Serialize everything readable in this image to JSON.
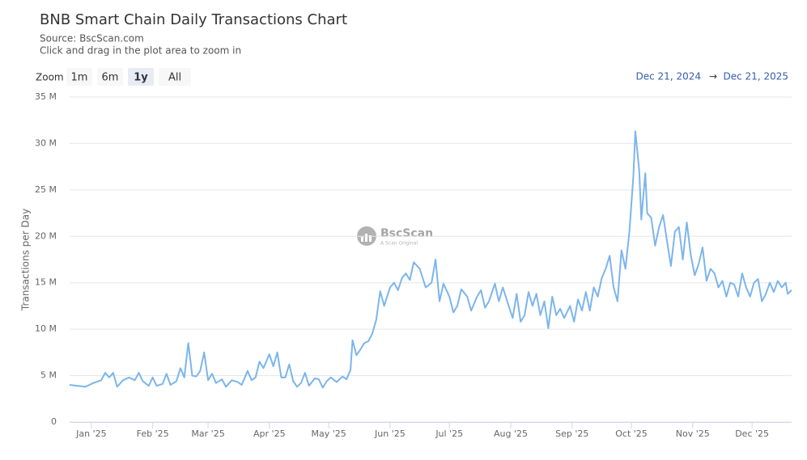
{
  "chart_data": {
    "type": "line",
    "title": "BNB Smart Chain Daily Transactions Chart",
    "subtitle": "Source: BscScan.com",
    "instruction": "Click and drag in the plot area to zoom in",
    "zoom": {
      "label": "Zoom",
      "options": [
        "1m",
        "6m",
        "1y",
        "All"
      ],
      "selected": "1y"
    },
    "range": {
      "from": "Dec 21, 2024",
      "separator": "→",
      "to": "Dec 21, 2025"
    },
    "watermark": {
      "name": "BscScan",
      "tagline": "A Scan Original"
    },
    "ylabel": "Transactions per Day",
    "color": "#7cb5ec",
    "grid": true,
    "xlim": [
      "2024-12-21",
      "2025-12-21"
    ],
    "xticks": [
      {
        "value": "2025-01-01",
        "label": "Jan '25"
      },
      {
        "value": "2025-02-01",
        "label": "Feb '25"
      },
      {
        "value": "2025-03-01",
        "label": "Mar '25"
      },
      {
        "value": "2025-04-01",
        "label": "Apr '25"
      },
      {
        "value": "2025-05-01",
        "label": "May '25"
      },
      {
        "value": "2025-06-01",
        "label": "Jun '25"
      },
      {
        "value": "2025-07-01",
        "label": "Jul '25"
      },
      {
        "value": "2025-08-01",
        "label": "Aug '25"
      },
      {
        "value": "2025-09-01",
        "label": "Sep '25"
      },
      {
        "value": "2025-10-01",
        "label": "Oct '25"
      },
      {
        "value": "2025-11-01",
        "label": "Nov '25"
      },
      {
        "value": "2025-12-01",
        "label": "Dec '25"
      }
    ],
    "ylim": [
      0,
      35
    ],
    "yticks": [
      0,
      {
        "value": 5,
        "label": "5 M"
      },
      {
        "value": 10,
        "label": "10 M"
      },
      {
        "value": 15,
        "label": "15 M"
      },
      {
        "value": 20,
        "label": "20 M"
      },
      {
        "value": 25,
        "label": "25 M"
      },
      {
        "value": 30,
        "label": "30 M"
      },
      {
        "value": 35,
        "label": "35 M"
      }
    ],
    "x": [
      "2024-12-21",
      "2024-12-25",
      "2024-12-29",
      "2025-01-02",
      "2025-01-06",
      "2025-01-08",
      "2025-01-10",
      "2025-01-12",
      "2025-01-14",
      "2025-01-17",
      "2025-01-20",
      "2025-01-23",
      "2025-01-25",
      "2025-01-27",
      "2025-01-30",
      "2025-02-01",
      "2025-02-03",
      "2025-02-06",
      "2025-02-08",
      "2025-02-10",
      "2025-02-13",
      "2025-02-15",
      "2025-02-17",
      "2025-02-19",
      "2025-02-21",
      "2025-02-23",
      "2025-02-25",
      "2025-02-27",
      "2025-03-01",
      "2025-03-03",
      "2025-03-05",
      "2025-03-08",
      "2025-03-10",
      "2025-03-13",
      "2025-03-16",
      "2025-03-18",
      "2025-03-21",
      "2025-03-23",
      "2025-03-25",
      "2025-03-27",
      "2025-03-29",
      "2025-04-01",
      "2025-04-03",
      "2025-04-05",
      "2025-04-07",
      "2025-04-09",
      "2025-04-11",
      "2025-04-13",
      "2025-04-15",
      "2025-04-17",
      "2025-04-19",
      "2025-04-21",
      "2025-04-24",
      "2025-04-26",
      "2025-04-28",
      "2025-04-30",
      "2025-05-02",
      "2025-05-05",
      "2025-05-08",
      "2025-05-10",
      "2025-05-12",
      "2025-05-13",
      "2025-05-15",
      "2025-05-17",
      "2025-05-19",
      "2025-05-21",
      "2025-05-23",
      "2025-05-25",
      "2025-05-27",
      "2025-05-29",
      "2025-06-01",
      "2025-06-03",
      "2025-06-05",
      "2025-06-07",
      "2025-06-09",
      "2025-06-11",
      "2025-06-13",
      "2025-06-16",
      "2025-06-19",
      "2025-06-22",
      "2025-06-24",
      "2025-06-26",
      "2025-06-28",
      "2025-07-01",
      "2025-07-03",
      "2025-07-05",
      "2025-07-07",
      "2025-07-10",
      "2025-07-12",
      "2025-07-15",
      "2025-07-17",
      "2025-07-19",
      "2025-07-21",
      "2025-07-24",
      "2025-07-26",
      "2025-07-28",
      "2025-07-31",
      "2025-08-02",
      "2025-08-04",
      "2025-08-06",
      "2025-08-08",
      "2025-08-10",
      "2025-08-12",
      "2025-08-14",
      "2025-08-16",
      "2025-08-18",
      "2025-08-20",
      "2025-08-22",
      "2025-08-24",
      "2025-08-26",
      "2025-08-28",
      "2025-08-31",
      "2025-09-02",
      "2025-09-04",
      "2025-09-06",
      "2025-09-08",
      "2025-09-10",
      "2025-09-12",
      "2025-09-14",
      "2025-09-16",
      "2025-09-18",
      "2025-09-20",
      "2025-09-22",
      "2025-09-24",
      "2025-09-26",
      "2025-09-28",
      "2025-09-30",
      "2025-10-02",
      "2025-10-03",
      "2025-10-05",
      "2025-10-06",
      "2025-10-08",
      "2025-10-09",
      "2025-10-11",
      "2025-10-13",
      "2025-10-15",
      "2025-10-17",
      "2025-10-19",
      "2025-10-21",
      "2025-10-23",
      "2025-10-25",
      "2025-10-27",
      "2025-10-29",
      "2025-10-31",
      "2025-11-02",
      "2025-11-04",
      "2025-11-06",
      "2025-11-08",
      "2025-11-10",
      "2025-11-12",
      "2025-11-14",
      "2025-11-16",
      "2025-11-18",
      "2025-11-20",
      "2025-11-22",
      "2025-11-24",
      "2025-11-26",
      "2025-11-28",
      "2025-11-30",
      "2025-12-02",
      "2025-12-04",
      "2025-12-06",
      "2025-12-08",
      "2025-12-10",
      "2025-12-12",
      "2025-12-14",
      "2025-12-16",
      "2025-12-18",
      "2025-12-19",
      "2025-12-21"
    ],
    "values": [
      4.0,
      3.9,
      3.8,
      4.2,
      4.5,
      5.3,
      4.8,
      5.3,
      3.8,
      4.5,
      4.8,
      4.5,
      5.3,
      4.4,
      3.9,
      4.8,
      3.9,
      4.1,
      5.2,
      4.0,
      4.4,
      5.8,
      4.8,
      8.5,
      5.0,
      4.9,
      5.5,
      7.5,
      4.5,
      5.2,
      4.2,
      4.6,
      3.8,
      4.5,
      4.3,
      4.0,
      5.5,
      4.5,
      4.8,
      6.5,
      5.8,
      7.3,
      6.0,
      7.5,
      4.8,
      4.8,
      6.2,
      4.4,
      3.8,
      4.2,
      5.3,
      3.9,
      4.7,
      4.6,
      3.7,
      4.4,
      4.8,
      4.3,
      4.9,
      4.6,
      5.6,
      8.8,
      7.2,
      7.8,
      8.5,
      8.7,
      9.5,
      11.0,
      14.1,
      12.5,
      14.5,
      15.0,
      14.2,
      15.5,
      16.0,
      15.3,
      17.2,
      16.5,
      14.5,
      15.0,
      17.5,
      13.0,
      14.9,
      13.5,
      11.8,
      12.5,
      14.3,
      13.5,
      12.0,
      13.5,
      14.2,
      12.3,
      13.0,
      14.9,
      13.0,
      14.5,
      12.5,
      11.2,
      13.8,
      10.8,
      11.5,
      14.0,
      12.5,
      13.8,
      11.5,
      13.0,
      10.1,
      13.5,
      11.5,
      12.2,
      11.2,
      12.5,
      10.8,
      13.2,
      12.0,
      14.0,
      12.0,
      14.5,
      13.5,
      15.5,
      16.5,
      17.9,
      14.5,
      13.0,
      18.5,
      16.5,
      20.5,
      26.5,
      31.3,
      27.0,
      21.8,
      26.8,
      22.5,
      22.0,
      19.0,
      21.0,
      22.3,
      19.5,
      16.8,
      20.5,
      21.0,
      17.5,
      21.5,
      18.0,
      15.8,
      17.0,
      18.8,
      15.2,
      16.5,
      16.0,
      14.5,
      15.2,
      13.5,
      15.0,
      14.8,
      13.5,
      16.0,
      14.5,
      13.5,
      15.0,
      15.4,
      13.0,
      13.8,
      15.0,
      14.0,
      15.2,
      14.5,
      15.0,
      13.8,
      14.2
    ]
  }
}
